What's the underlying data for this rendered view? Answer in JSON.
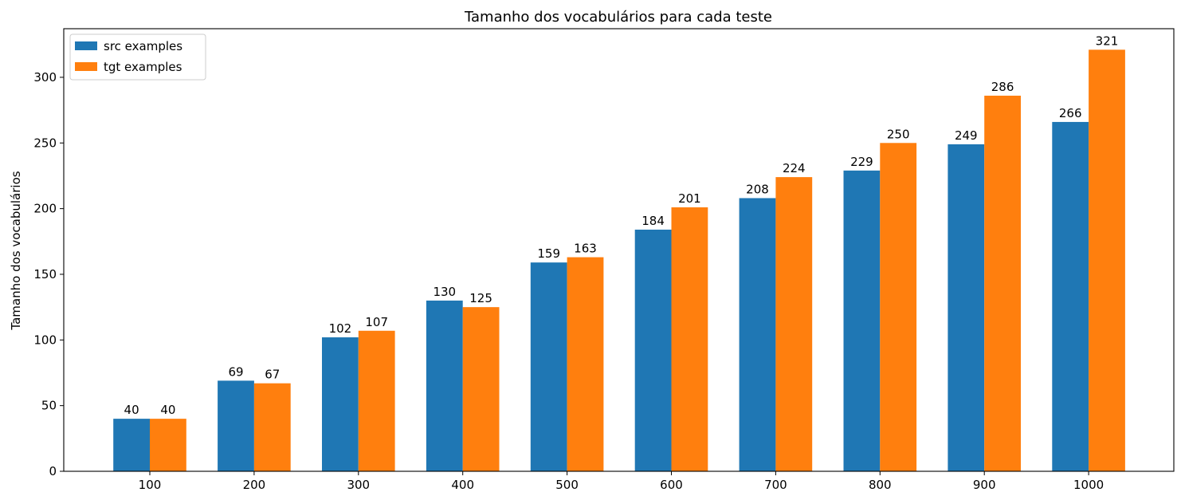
{
  "chart_data": {
    "type": "bar",
    "title": "Tamanho dos vocabulários para cada teste",
    "xlabel": "",
    "ylabel": "Tamanho dos vocabulários",
    "categories": [
      "100",
      "200",
      "300",
      "400",
      "500",
      "600",
      "700",
      "800",
      "900",
      "1000"
    ],
    "series": [
      {
        "name": "src examples",
        "color": "#1f77b4",
        "values": [
          40,
          69,
          102,
          130,
          159,
          184,
          208,
          229,
          249,
          266
        ]
      },
      {
        "name": "tgt examples",
        "color": "#ff7f0e",
        "values": [
          40,
          67,
          107,
          125,
          163,
          201,
          224,
          250,
          286,
          321
        ]
      }
    ],
    "ylim": [
      0,
      337
    ],
    "yticks": [
      0,
      50,
      100,
      150,
      200,
      250,
      300
    ],
    "grid": false,
    "legend": "upper-left",
    "data_labels": true
  }
}
